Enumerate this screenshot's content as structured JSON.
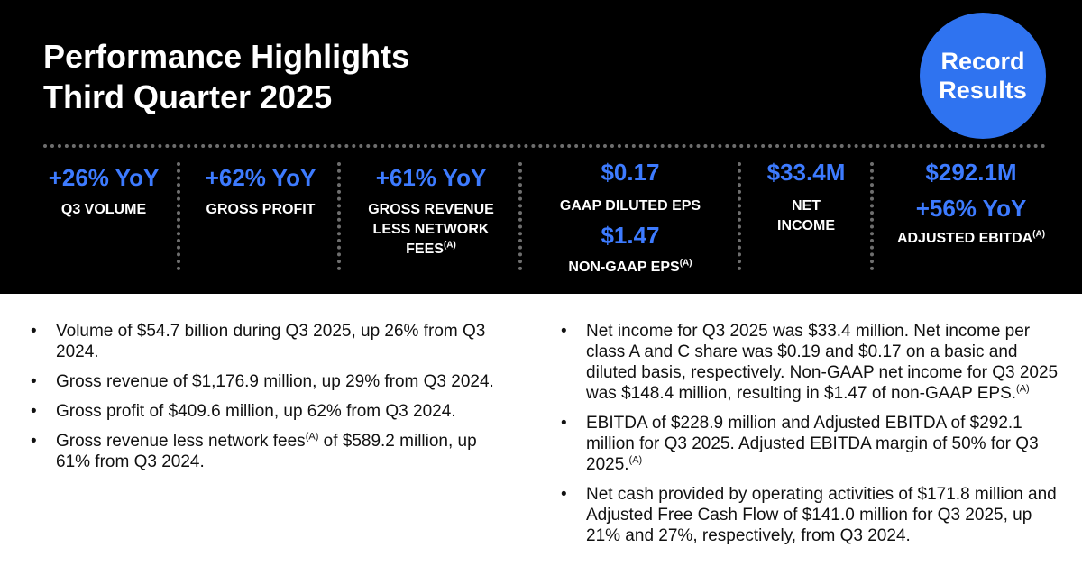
{
  "title": {
    "line1": "Performance Highlights",
    "line2": "Third Quarter 2025"
  },
  "badge": {
    "line1": "Record",
    "line2": "Results"
  },
  "metrics": [
    {
      "value": "+26% YoY",
      "label": "Q3 VOLUME"
    },
    {
      "value": "+62% YoY",
      "label": "GROSS PROFIT"
    },
    {
      "value": "+61% YoY",
      "label_line1": "GROSS REVENUE",
      "label_line2": "LESS NETWORK",
      "label_line3": "FEES",
      "footnote": "(A)"
    },
    {
      "value1": "$0.17",
      "label1": "GAAP DILUTED EPS",
      "value2": "$1.47",
      "label2": "NON-GAAP EPS",
      "footnote": "(A)"
    },
    {
      "value": "$33.4M",
      "label_line1": "NET",
      "label_line2": "INCOME"
    },
    {
      "value1": "$292.1M",
      "value2": "+56% YoY",
      "label": "ADJUSTED EBITDA",
      "footnote": "(A)"
    }
  ],
  "bullets_left": [
    {
      "text": "Volume of $54.7 billion during Q3 2025, up 26% from Q3 2024."
    },
    {
      "text": "Gross revenue of $1,176.9 million, up 29% from Q3 2024."
    },
    {
      "text": "Gross profit of $409.6 million, up 62% from Q3 2024."
    },
    {
      "pre": "Gross revenue less network fees",
      "footnote": "(A)",
      "post": " of $589.2 million, up 61% from Q3 2024."
    }
  ],
  "bullets_right": [
    {
      "text": "Net income for Q3 2025 was $33.4 million. Net income per class A and C share was $0.19 and $0.17 on a basic and diluted basis, respectively. Non-GAAP net income for Q3 2025 was $148.4 million, resulting in $1.47 of non-GAAP EPS.",
      "footnote": "(A)"
    },
    {
      "text": "EBITDA of $228.9 million and Adjusted EBITDA of $292.1 million for Q3 2025. Adjusted EBITDA margin of 50% for Q3 2025.",
      "footnote": "(A)"
    },
    {
      "text": "Net cash provided by operating activities of $171.8 million and Adjusted Free Cash Flow of $141.0 million for Q3 2025, up 21% and 27%, respectively, from Q3 2024."
    }
  ],
  "colors": {
    "background_top": "#000000",
    "accent_blue": "#3d7bff",
    "badge_blue": "#2f73f0",
    "text_white": "#ffffff"
  }
}
